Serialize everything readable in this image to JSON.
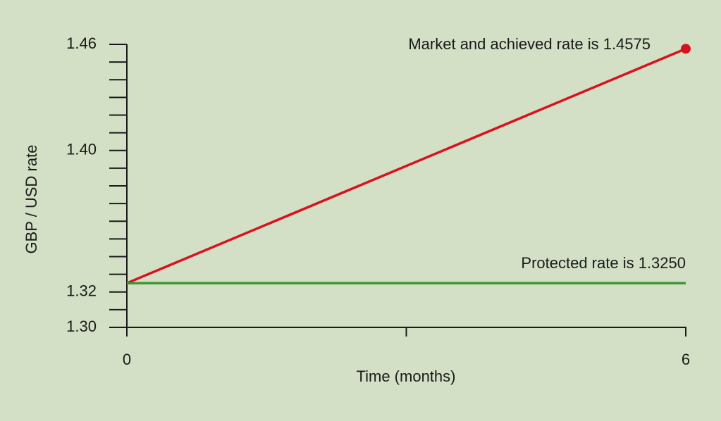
{
  "chart_data": {
    "type": "line",
    "x_label": "Time  (months)",
    "y_label": "GBP / USD rate",
    "x": [
      0,
      6
    ],
    "series": [
      {
        "name": "Market and achieved rate is 1.4575",
        "color": "#d9121f",
        "values": [
          1.325,
          1.4575
        ],
        "end_marker": true
      },
      {
        "name": "Protected rate is 1.3250",
        "color": "#3f9632",
        "values": [
          1.325,
          1.325
        ],
        "end_marker": false
      }
    ],
    "xlim": [
      0,
      6
    ],
    "xticks": [
      0,
      6
    ],
    "x_minor_ticks": [
      3
    ],
    "ylim": [
      1.3,
      1.46
    ],
    "yticks": [
      {
        "value": 1.3,
        "label": "1.30"
      },
      {
        "value": 1.32,
        "label": "1.32"
      },
      {
        "value": 1.4,
        "label": "1.40"
      },
      1.46
    ],
    "y_minor_ticks": [
      1.31,
      1.33,
      1.34,
      1.35,
      1.36,
      1.37,
      1.38,
      1.39,
      1.41,
      1.42,
      1.43,
      1.44,
      1.45
    ],
    "grid": false
  }
}
